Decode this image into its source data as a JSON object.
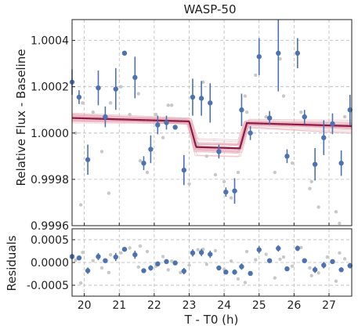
{
  "chart_data": [
    {
      "type": "scatter",
      "title": "WASP-50",
      "xlabel": "",
      "ylabel": "Relative Flux - Baseline",
      "xlim": [
        19.65,
        27.65
      ],
      "ylim": [
        0.9996,
        1.00049
      ],
      "yticks": [
        "0.9996",
        "0.9998",
        "1.0000",
        "1.0002",
        "1.0004"
      ],
      "ytick_values": [
        0.9996,
        0.9998,
        1.0,
        1.0002,
        1.0004
      ],
      "xtick_values": [
        20,
        21,
        22,
        23,
        24,
        25,
        26,
        27
      ],
      "grid": true,
      "colors": {
        "binned": "#4c72b0",
        "unbinned": "#c8c8c8",
        "model": "#8b1a4a",
        "samples": "#e8a9b4"
      },
      "model": {
        "t0": 23.85,
        "ingress_start": 23.0,
        "ingress_end": 23.2,
        "egress_start": 24.45,
        "egress_end": 24.65,
        "depth": 0.00011,
        "baseline_start": 1.000065,
        "baseline_end": 1.00003
      },
      "series": [
        {
          "type": "errorbar",
          "x": [
            19.65,
            19.85,
            20.1,
            20.4,
            20.6,
            20.9,
            21.15,
            21.45,
            21.7,
            21.9,
            22.1,
            22.35,
            22.6,
            22.85,
            23.1,
            23.35,
            23.6,
            23.85,
            24.05,
            24.3,
            24.5,
            24.75,
            25.0,
            25.3,
            25.55,
            25.8,
            26.1,
            26.3,
            26.6,
            26.85,
            27.1,
            27.35,
            27.6
          ],
          "y": [
            1.00022,
            1.000155,
            0.999885,
            1.000195,
            1.00007,
            1.00019,
            1.000345,
            1.00024,
            0.99987,
            0.99993,
            1.000035,
            1.000045,
            1.000025,
            0.99984,
            1.000155,
            1.00015,
            1.00013,
            0.99992,
            0.999745,
            0.99975,
            1.0001,
            1.0,
            1.00033,
            1.000065,
            1.000345,
            0.9999,
            1.000345,
            1.00007,
            0.999865,
            0.99998,
            1.00004,
            0.99987,
            1.0001
          ],
          "yerr": [
            5.5e-05,
            3e-05,
            6.5e-05,
            7.5e-05,
            4.5e-05,
            9e-05,
            5e-06,
            9e-05,
            3e-05,
            6e-05,
            4e-05,
            3e-05,
            1e-05,
            6.5e-05,
            8e-05,
            7.5e-05,
            8.5e-05,
            3e-05,
            2e-05,
            5.5e-05,
            7e-05,
            3e-05,
            8e-05,
            3e-05,
            0.000165,
            3e-05,
            6.5e-05,
            3e-05,
            7e-05,
            7.5e-05,
            4.5e-05,
            5.5e-05,
            6.5e-05
          ]
        },
        {
          "type": "scatter",
          "x": [
            19.75,
            19.95,
            20.25,
            20.5,
            20.75,
            21.05,
            21.3,
            21.55,
            21.8,
            22.05,
            22.25,
            22.5,
            22.75,
            23.0,
            23.25,
            23.5,
            23.75,
            24.0,
            24.2,
            24.4,
            24.65,
            24.9,
            25.2,
            25.45,
            25.7,
            25.95,
            26.2,
            26.45,
            26.7,
            26.95,
            27.2,
            27.45,
            19.9,
            20.7,
            21.6,
            22.4,
            23.4,
            24.6,
            25.6,
            26.5,
            27.3
          ],
          "y": [
            1.0,
            1.00013,
            1.00009,
            0.99992,
            1.00013,
            1.0002,
            1.00008,
            1.00017,
            0.99983,
            1.00008,
            0.99998,
            1.00012,
            1.00006,
            0.99978,
            0.99995,
            0.9999,
            0.99982,
            0.99979,
            0.99972,
            0.99983,
            1.00009,
            1.00025,
            1.00007,
            0.99983,
            1.00016,
            0.99987,
            1.00009,
            0.99976,
            0.99968,
            1.00004,
            0.99966,
            1.00007,
            0.99969,
            0.99974,
            0.99988,
            1.00012,
            1.00022,
            1.00016,
            1.00032,
            0.99979,
            0.99961
          ]
        }
      ]
    },
    {
      "type": "scatter",
      "title": "",
      "xlabel": "T - T0 (h)",
      "ylabel": "Residuals",
      "xlim": [
        19.65,
        27.65
      ],
      "ylim": [
        -0.00074,
        0.00074
      ],
      "yticks": [
        "0.0005",
        "0.0000",
        "-0.0005"
      ],
      "ytick_values": [
        0.0005,
        0.0,
        -0.0005
      ],
      "xticks": [
        "20",
        "21",
        "22",
        "23",
        "24",
        "25",
        "26",
        "27"
      ],
      "xtick_values": [
        20,
        21,
        22,
        23,
        24,
        25,
        26,
        27
      ],
      "grid": true,
      "series": [
        {
          "type": "errorbar",
          "x": [
            19.65,
            19.85,
            20.1,
            20.4,
            20.6,
            20.9,
            21.15,
            21.45,
            21.7,
            21.9,
            22.1,
            22.35,
            22.6,
            22.85,
            23.1,
            23.35,
            23.6,
            23.85,
            24.05,
            24.3,
            24.5,
            24.75,
            25.0,
            25.3,
            25.55,
            25.8,
            26.1,
            26.3,
            26.6,
            26.85,
            27.1,
            27.35,
            27.6
          ],
          "y": [
            0.00013,
            0.0001,
            -0.00018,
            0.00013,
            4e-05,
            0.00012,
            0.00029,
            0.00017,
            -0.00018,
            -0.00012,
            -3e-05,
            2e-05,
            -1e-05,
            -0.00019,
            0.00021,
            0.00022,
            0.00018,
            -0.00012,
            -0.00021,
            -0.00021,
            -9e-05,
            -0.00024,
            0.00028,
            4e-05,
            0.00031,
            -0.00014,
            0.00031,
            4e-05,
            -0.00016,
            -6e-05,
            2e-05,
            -0.00016,
            -7e-05
          ],
          "yerr": [
            6e-05,
            3e-05,
            7e-05,
            8e-05,
            5e-05,
            9e-05,
            1e-05,
            9e-05,
            3e-05,
            6e-05,
            4e-05,
            3e-05,
            1e-05,
            7e-05,
            8e-05,
            8e-05,
            8e-05,
            3e-05,
            2e-05,
            6e-05,
            7e-05,
            3e-05,
            8e-05,
            3e-05,
            7e-05,
            3e-05,
            6e-05,
            3e-05,
            7e-05,
            7e-05,
            4e-05,
            5e-05,
            6e-05
          ]
        },
        {
          "type": "scatter",
          "x": [
            19.75,
            19.95,
            20.25,
            20.5,
            20.75,
            21.05,
            21.3,
            21.55,
            21.8,
            22.05,
            22.25,
            22.5,
            22.75,
            23.0,
            23.25,
            23.5,
            23.75,
            24.0,
            24.2,
            24.4,
            24.65,
            24.9,
            25.2,
            25.45,
            25.7,
            25.95,
            26.2,
            26.45,
            26.7,
            26.95,
            27.2,
            27.45,
            19.9,
            20.7,
            21.6,
            22.4,
            23.4,
            24.6,
            25.6,
            26.5,
            27.3
          ],
          "y": [
            5e-05,
            0.00022,
            4e-05,
            -0.00012,
            0.00017,
            0.00021,
            0.00032,
            -0.0001,
            0.00024,
            -8e-05,
            0.00013,
            3e-05,
            -0.00022,
            -6e-05,
            0.00028,
            -4e-05,
            0.00026,
            -0.00015,
            3e-05,
            -0.00036,
            0.00024,
            6e-05,
            0.00018,
            -0.00034,
            0.00012,
            -8e-05,
            0.00033,
            -0.00012,
            -0.00023,
            0.00012,
            -0.00041,
            8e-05,
            -0.00045,
            -0.00022,
            0.00036,
            -0.00016,
            0.00029,
            -0.00044,
            7e-05,
            -0.00029,
            0.00021
          ]
        }
      ]
    }
  ]
}
